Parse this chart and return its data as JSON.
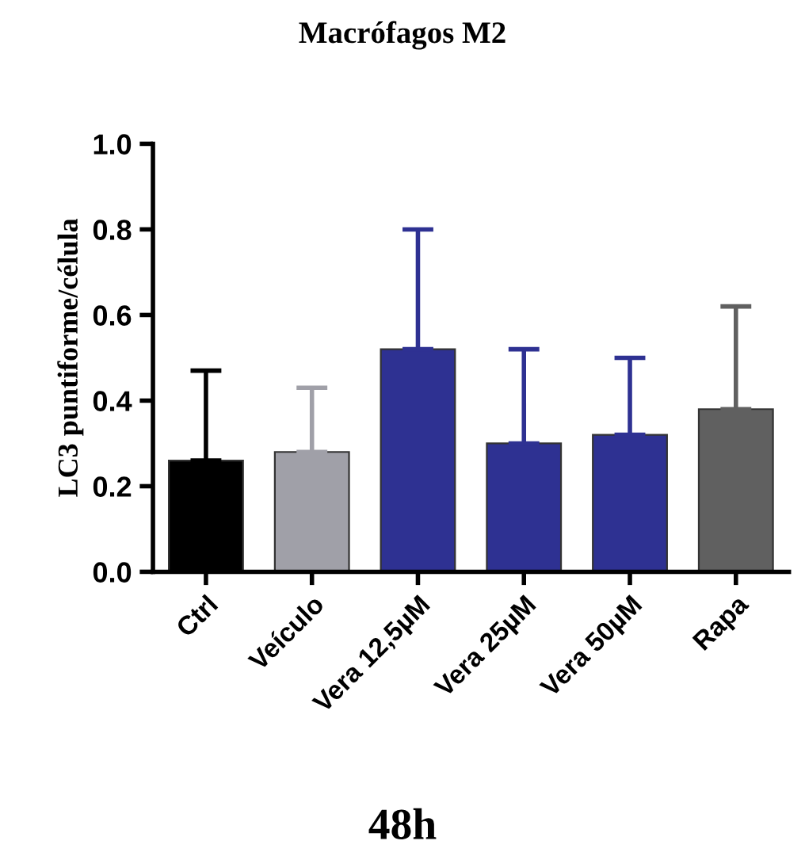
{
  "chart_data": {
    "type": "bar",
    "title": "Macrófagos M2",
    "ylabel": "LC3 puntiforme/célula",
    "categories": [
      "Ctrl",
      "Veículo",
      "Vera 12,5µM",
      "Vera 25µM",
      "Vera 50µM",
      "Rapa"
    ],
    "values": [
      0.26,
      0.28,
      0.52,
      0.3,
      0.32,
      0.38
    ],
    "colors": [
      "#000000",
      "#a0a0a8",
      "#2e3192",
      "#2e3192",
      "#2e3192",
      "#606060"
    ],
    "errors": [
      [
        0.26,
        0.47
      ],
      [
        0.28,
        0.43
      ],
      [
        0.52,
        0.8
      ],
      [
        0.3,
        0.52
      ],
      [
        0.32,
        0.5
      ],
      [
        0.38,
        0.62
      ]
    ],
    "ylim": [
      0,
      1.0
    ],
    "yticks": [
      {
        "value": 0,
        "label": "0.0"
      },
      {
        "value": 0.2,
        "label": "0.2"
      },
      {
        "value": 0.4,
        "label": "0.4"
      },
      {
        "value": 0.6,
        "label": "0.6"
      },
      {
        "value": 0.8,
        "label": "0.8"
      },
      {
        "value": 1.0,
        "label": "1.0"
      }
    ],
    "grid": false,
    "legend": false,
    "annotations": [
      "48h"
    ]
  }
}
